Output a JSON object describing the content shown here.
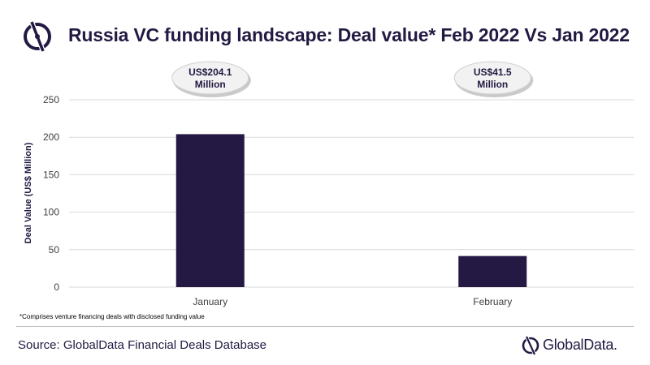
{
  "header": {
    "title": "Russia VC funding landscape: Deal value* Feb 2022 Vs Jan 2022"
  },
  "chart_data": {
    "type": "bar",
    "title": "Russia VC funding landscape: Deal value* Feb 2022 Vs Jan 2022",
    "categories": [
      "January",
      "February"
    ],
    "values": [
      204.1,
      41.5
    ],
    "ylabel": "Deal Value (US$ Million)",
    "xlabel": "",
    "ylim": [
      0,
      250
    ],
    "yticks": [
      "0",
      "50",
      "100",
      "150",
      "200",
      "250"
    ],
    "grid": true,
    "legend": "none",
    "bar_color": "#231942",
    "annotations": [
      {
        "line1": "US$204.1",
        "line2": "Million"
      },
      {
        "line1": "US$41.5",
        "line2": "Million"
      }
    ]
  },
  "footer": {
    "footnote": "*Comprises venture financing deals with disclosed funding value",
    "source": "Source: GlobalData Financial Deals Database",
    "brand": "GlobalData."
  },
  "colors": {
    "brand": "#231942",
    "grid": "#d9d9d9"
  }
}
